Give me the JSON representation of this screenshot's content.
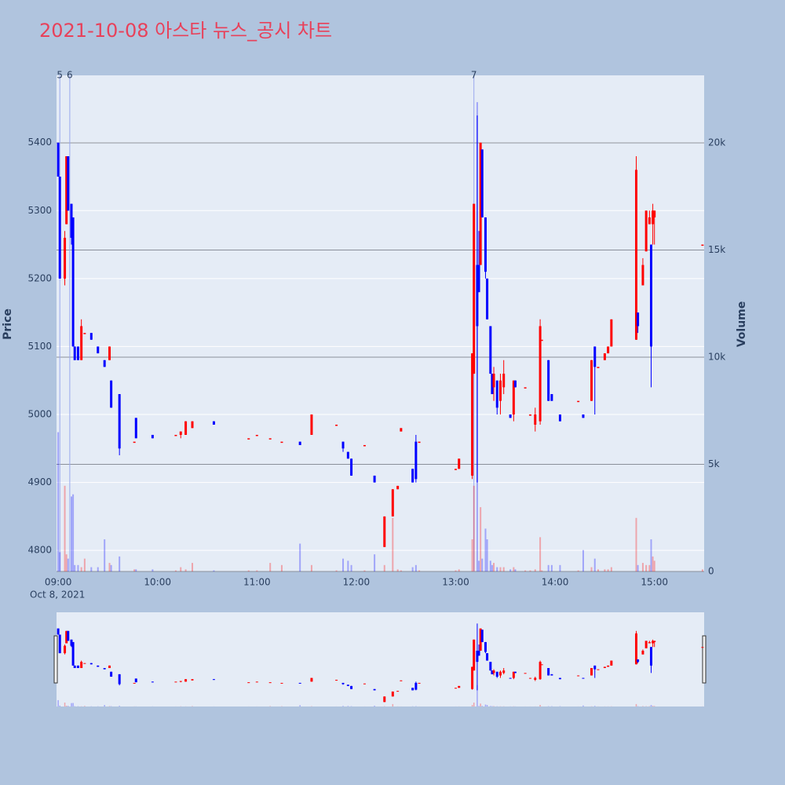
{
  "chart_data": {
    "type": "candlestick",
    "title": "2021-10-08 아스타 뉴스_공시 차트",
    "y_label": "Price",
    "y2_label": "Volume",
    "x_date_label": "Oct 8, 2021",
    "increasing_color": "#ff0000",
    "decreasing_color": "#0000ff",
    "xlim": [
      "08:59",
      "15:30"
    ],
    "xticks": [
      "09:00",
      "10:00",
      "11:00",
      "12:00",
      "13:00",
      "14:00",
      "15:00"
    ],
    "ylim": [
      4769,
      5499
    ],
    "yticks": [
      4800,
      4900,
      5000,
      5100,
      5200,
      5300,
      5400
    ],
    "y2lim": [
      0,
      23150
    ],
    "y2ticks": [
      0,
      {
        "value": 5000,
        "label": "5k"
      },
      {
        "value": 10000,
        "label": "10k"
      },
      {
        "value": 15000,
        "label": "15k"
      },
      {
        "value": 20000,
        "label": "20k"
      }
    ],
    "annotations": [
      {
        "x": "09:01",
        "text": "5"
      },
      {
        "x": "09:07",
        "text": "6"
      },
      {
        "x": "13:11",
        "text": "7"
      }
    ],
    "x": [
      "09:00",
      "09:01",
      "09:04",
      "09:05",
      "09:06",
      "09:08",
      "09:09",
      "09:10",
      "09:12",
      "09:14",
      "09:16",
      "09:20",
      "09:24",
      "09:28",
      "09:31",
      "09:32",
      "09:37",
      "09:46",
      "09:47",
      "09:57",
      "10:11",
      "10:14",
      "10:17",
      "10:21",
      "10:34",
      "10:55",
      "11:00",
      "11:08",
      "11:15",
      "11:26",
      "11:33",
      "11:48",
      "11:52",
      "11:55",
      "11:57",
      "12:05",
      "12:11",
      "12:17",
      "12:22",
      "12:25",
      "12:27",
      "12:34",
      "12:36",
      "12:38",
      "13:00",
      "13:02",
      "13:10",
      "13:11",
      "13:13",
      "13:14",
      "13:15",
      "13:16",
      "13:18",
      "13:19",
      "13:21",
      "13:22",
      "13:23",
      "13:25",
      "13:27",
      "13:29",
      "13:33",
      "13:35",
      "13:36",
      "13:42",
      "13:45",
      "13:48",
      "13:51",
      "13:52",
      "13:56",
      "13:58",
      "14:03",
      "14:14",
      "14:17",
      "14:22",
      "14:24",
      "14:26",
      "14:30",
      "14:32",
      "14:34",
      "14:49",
      "14:50",
      "14:53",
      "14:55",
      "14:57",
      "14:58",
      "14:59",
      "15:00",
      "15:29"
    ],
    "open": [
      5400,
      5350,
      5200,
      5280,
      5380,
      5310,
      5290,
      5100,
      5100,
      5080,
      5120,
      5120,
      5100,
      5080,
      5080,
      5050,
      5030,
      4960,
      4995,
      4970,
      4970,
      4970,
      4970,
      4980,
      4990,
      4965,
      4970,
      4965,
      4960,
      4960,
      4970,
      4985,
      4960,
      4945,
      4935,
      4955,
      4910,
      4805,
      4850,
      4890,
      4975,
      4920,
      4960,
      4960,
      4920,
      4920,
      4910,
      5060,
      5220,
      5220,
      5220,
      5390,
      5290,
      5200,
      5130,
      5060,
      5040,
      5050,
      5020,
      5040,
      5000,
      5000,
      5050,
      5040,
      5000,
      4985,
      4990,
      5110,
      5080,
      5030,
      5000,
      5020,
      5000,
      5020,
      5100,
      5070,
      5080,
      5090,
      5100,
      5110,
      5150,
      5190,
      5240,
      5280,
      5250,
      5280,
      5290,
      5250
    ],
    "high": [
      5400,
      5350,
      5270,
      5380,
      5380,
      5310,
      5290,
      5100,
      5100,
      5140,
      5120,
      5120,
      5100,
      5080,
      5100,
      5050,
      5030,
      4960,
      4995,
      4970,
      4970,
      4975,
      4990,
      4990,
      4990,
      4965,
      4970,
      4965,
      4960,
      4960,
      5000,
      4985,
      4960,
      4945,
      4935,
      4955,
      4910,
      4850,
      4890,
      4895,
      4980,
      4920,
      4970,
      4960,
      4920,
      4935,
      5090,
      5310,
      5440,
      5270,
      5400,
      5390,
      5290,
      5200,
      5130,
      5060,
      5070,
      5050,
      5060,
      5080,
      5000,
      5050,
      5050,
      5040,
      5000,
      5010,
      5140,
      5110,
      5080,
      5030,
      5000,
      5020,
      5000,
      5080,
      5100,
      5070,
      5090,
      5100,
      5140,
      5380,
      5150,
      5230,
      5300,
      5300,
      5250,
      5310,
      5300,
      5250
    ],
    "low": [
      5350,
      5200,
      5190,
      5280,
      5300,
      5250,
      5100,
      5080,
      5080,
      5080,
      5120,
      5110,
      5090,
      5070,
      5080,
      5010,
      4940,
      4960,
      4965,
      4965,
      4970,
      4965,
      4970,
      4980,
      4985,
      4965,
      4970,
      4965,
      4960,
      4955,
      4970,
      4985,
      4945,
      4935,
      4910,
      4955,
      4900,
      4805,
      4850,
      4890,
      4975,
      4900,
      4900,
      4960,
      4920,
      4920,
      4905,
      5060,
      4900,
      5180,
      5220,
      5290,
      5200,
      5140,
      5060,
      5030,
      5020,
      5000,
      5000,
      5030,
      4995,
      4990,
      5040,
      5040,
      5000,
      4975,
      4985,
      5110,
      5020,
      5020,
      4990,
      5020,
      4995,
      5020,
      5000,
      5070,
      5080,
      5090,
      5100,
      5110,
      5120,
      5190,
      5240,
      5280,
      5040,
      5250,
      5250,
      5250
    ],
    "close": [
      5350,
      5200,
      5260,
      5380,
      5300,
      5260,
      5100,
      5080,
      5080,
      5130,
      5120,
      5110,
      5090,
      5070,
      5100,
      5010,
      4950,
      4960,
      4965,
      4965,
      4970,
      4975,
      4990,
      4990,
      4985,
      4965,
      4970,
      4965,
      4960,
      4955,
      5000,
      4985,
      4950,
      4935,
      4910,
      4955,
      4900,
      4850,
      4890,
      4895,
      4980,
      4900,
      4905,
      4960,
      4920,
      4935,
      5090,
      5310,
      5130,
      5180,
      5400,
      5290,
      5210,
      5140,
      5060,
      5030,
      5060,
      5010,
      5050,
      5060,
      4995,
      5050,
      5040,
      5040,
      5000,
      5000,
      5130,
      5110,
      5020,
      5020,
      4990,
      5020,
      4995,
      5080,
      5070,
      5070,
      5090,
      5100,
      5140,
      5360,
      5130,
      5220,
      5300,
      5290,
      5100,
      5300,
      5300,
      5250
    ],
    "volume": [
      6500,
      900,
      4000,
      800,
      600,
      3500,
      3600,
      300,
      300,
      200,
      600,
      200,
      200,
      1500,
      400,
      300,
      700,
      100,
      100,
      100,
      50,
      200,
      100,
      400,
      50,
      50,
      50,
      400,
      300,
      1300,
      300,
      50,
      600,
      500,
      300,
      50,
      800,
      300,
      2500,
      100,
      50,
      200,
      300,
      50,
      50,
      100,
      1500,
      4000,
      21900,
      500,
      3000,
      600,
      2000,
      1500,
      500,
      300,
      400,
      200,
      200,
      200,
      100,
      200,
      100,
      50,
      50,
      100,
      1600,
      50,
      300,
      300,
      300,
      50,
      1000,
      200,
      600,
      100,
      100,
      100,
      200,
      2500,
      300,
      400,
      300,
      300,
      1500,
      700,
      500,
      100
    ]
  }
}
